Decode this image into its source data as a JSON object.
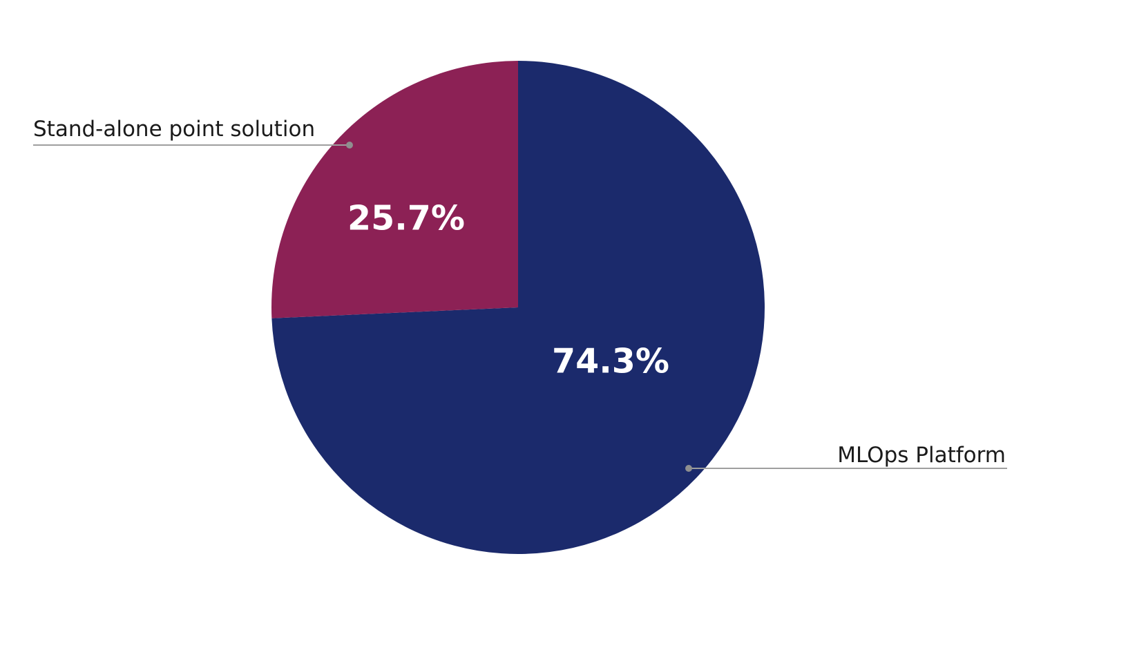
{
  "chart_data": {
    "type": "pie",
    "title": "",
    "slices": [
      {
        "label": "MLOps Platform",
        "value": 74.3,
        "percent_label": "74.3%",
        "color": "#1B2A6C"
      },
      {
        "label": "Stand-alone point solution",
        "value": 25.7,
        "percent_label": "25.7%",
        "color": "#8C2155"
      }
    ],
    "start_angle_deg": 0,
    "direction": "clockwise",
    "labels_position": "outside-with-leader-lines",
    "percent_labels_position": "inside",
    "legend": "none",
    "style": {
      "background_color": "#FFFFFF",
      "percent_label_color": "#FFFFFF",
      "outside_label_color": "#1A1A1A",
      "leader_line_color": "#9E9E9E",
      "leader_dot_color": "#8F8F8F"
    }
  }
}
